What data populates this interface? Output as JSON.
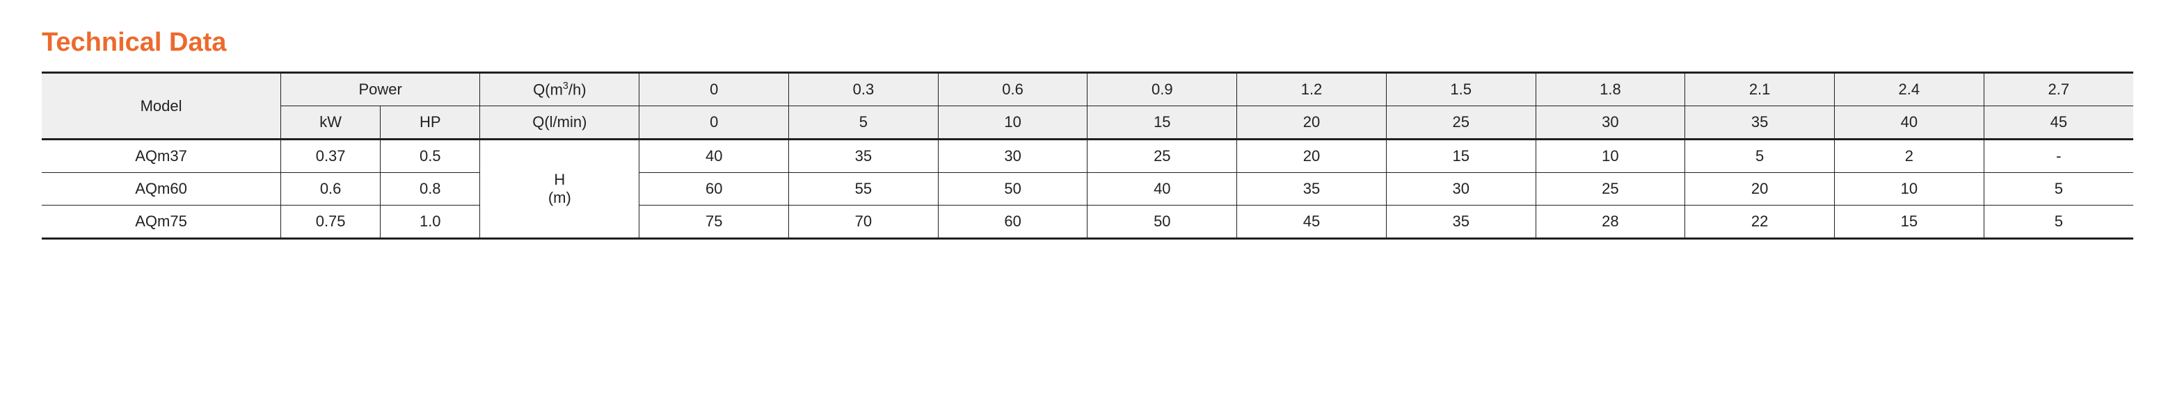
{
  "title": "Technical Data",
  "title_color": "#ec6a2c",
  "border_color": "#231f20",
  "header_bg": "#efefef",
  "text_color": "#231f20",
  "headers": {
    "model": "Model",
    "power": "Power",
    "kw": "kW",
    "hp": "HP",
    "q_m3h_prefix": "Q(m",
    "q_m3h_sup": "3",
    "q_m3h_suffix": "/h)",
    "q_lmin": "Q(l/min)",
    "h_m_line1": "H",
    "h_m_line2": "(m)"
  },
  "q_m3h_values": [
    "0",
    "0.3",
    "0.6",
    "0.9",
    "1.2",
    "1.5",
    "1.8",
    "2.1",
    "2.4",
    "2.7"
  ],
  "q_lmin_values": [
    "0",
    "5",
    "10",
    "15",
    "20",
    "25",
    "30",
    "35",
    "40",
    "45"
  ],
  "rows": [
    {
      "model": "AQm37",
      "kw": "0.37",
      "hp": "0.5",
      "vals": [
        "40",
        "35",
        "30",
        "25",
        "20",
        "15",
        "10",
        "5",
        "2",
        "-"
      ]
    },
    {
      "model": "AQm60",
      "kw": "0.6",
      "hp": "0.8",
      "vals": [
        "60",
        "55",
        "50",
        "40",
        "35",
        "30",
        "25",
        "20",
        "10",
        "5"
      ]
    },
    {
      "model": "AQm75",
      "kw": "0.75",
      "hp": "1.0",
      "vals": [
        "75",
        "70",
        "60",
        "50",
        "45",
        "35",
        "28",
        "22",
        "15",
        "5"
      ]
    }
  ]
}
